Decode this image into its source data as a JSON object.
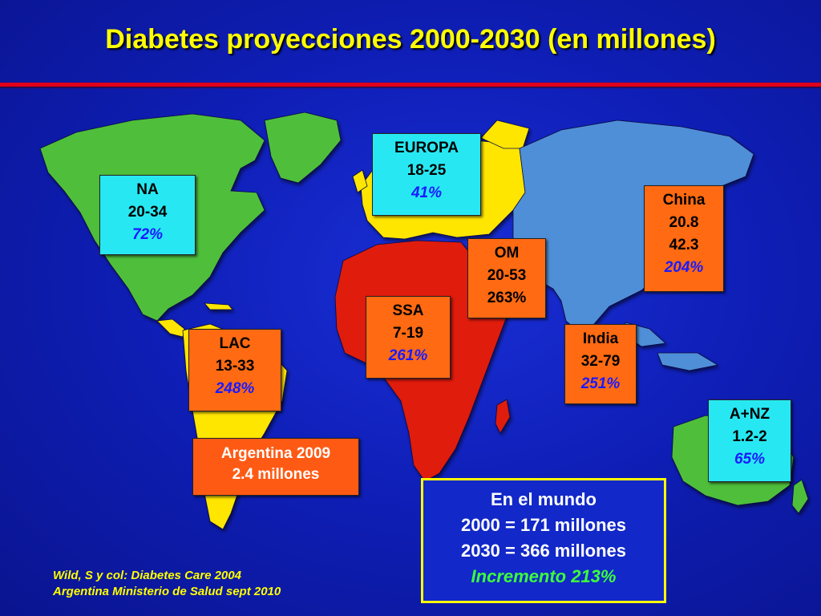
{
  "title": "Diabetes proyecciones 2000-2030 (en millones)",
  "colors": {
    "background": "#1020c0",
    "rule": "#e0001b",
    "title": "#ffff00",
    "north_america": "#4fbf3a",
    "south_america": "#ffe600",
    "europe": "#ffe600",
    "africa": "#e01a10",
    "asia": "#4f8fd8",
    "oceania": "#4fbf3a",
    "label_cyan": "#27e8f2",
    "label_orange": "#ff6a12",
    "percent_text": "#1a1aff"
  },
  "regions": {
    "na": {
      "name": "NA",
      "range": "20-34",
      "pct": "72%"
    },
    "europa": {
      "name": "EUROPA",
      "range": "18-25",
      "pct": "41%"
    },
    "china": {
      "name": "China",
      "v2000": "20.8",
      "v2030": "42.3",
      "pct": "204%"
    },
    "om": {
      "name": "OM",
      "range": "20-53",
      "pct": "263%"
    },
    "ssa": {
      "name": "SSA",
      "range": "7-19",
      "pct": "261%"
    },
    "india": {
      "name": "India",
      "range": "32-79",
      "pct": "251%"
    },
    "lac": {
      "name": "LAC",
      "range": "13-33",
      "pct": "248%"
    },
    "anz": {
      "name": "A+NZ",
      "range": "1.2-2",
      "pct": "65%"
    }
  },
  "argentina": {
    "line1": "Argentina 2009",
    "line2": "2.4 millones"
  },
  "world": {
    "heading": "En el mundo",
    "line_2000": "2000 = 171 millones",
    "line_2030": "2030 = 366 millones",
    "increase": "Incremento 213%"
  },
  "sources": [
    "Wild, S y col: Diabetes Care 2004",
    "Argentina Ministerio de Salud sept 2010"
  ]
}
